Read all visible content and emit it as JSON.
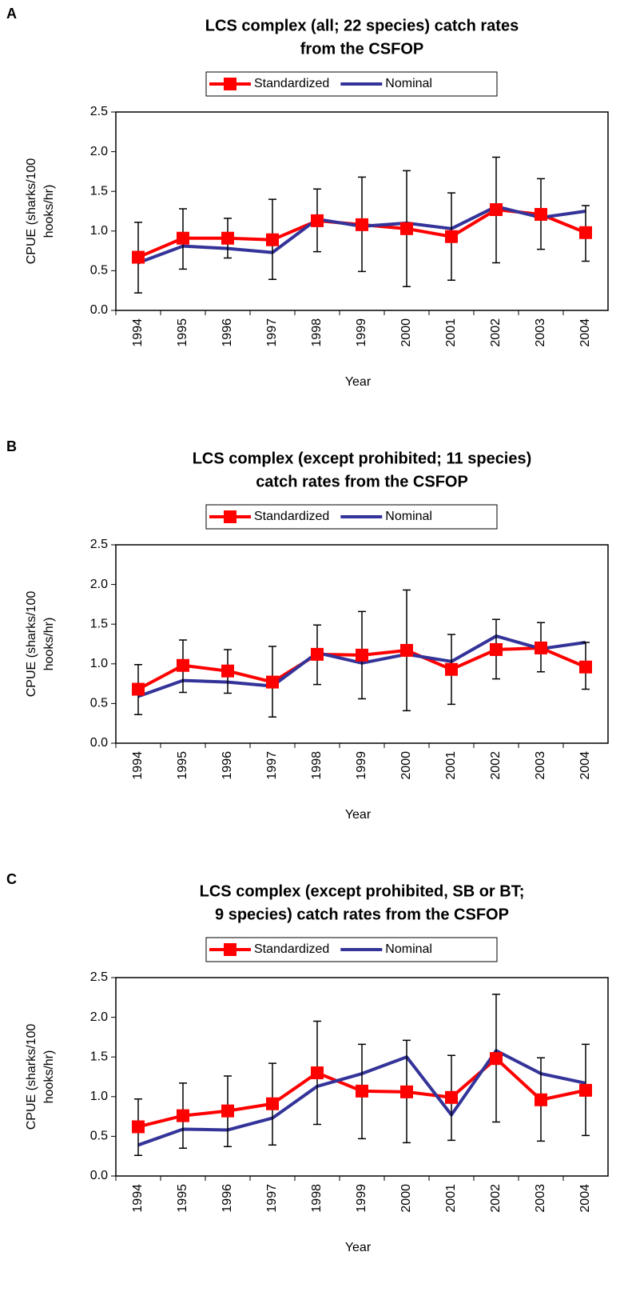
{
  "chart_data": [
    {
      "type": "line",
      "panel": "A",
      "title": [
        "LCS complex (all; 22 species) catch rates",
        "from the CSFOP"
      ],
      "categories": [
        "1994",
        "1995",
        "1996",
        "1997",
        "1998",
        "1999",
        "2000",
        "2001",
        "2002",
        "2003",
        "2004"
      ],
      "xlabel": "Year",
      "ylabel": [
        "CPUE (sharks/100",
        "hooks/hr)"
      ],
      "ylim": [
        0,
        2.5
      ],
      "yticks": [
        {
          "value": 0,
          "label": "0.0"
        },
        {
          "value": 0.5,
          "label": "0.5"
        },
        {
          "value": 1,
          "label": "1.0"
        },
        {
          "value": 1.5,
          "label": "1.5"
        },
        {
          "value": 2,
          "label": "2.0"
        },
        {
          "value": 2.5,
          "label": "2.5"
        }
      ],
      "series": [
        {
          "name": "Standardized",
          "color": "#ff0000",
          "values": [
            0.67,
            0.91,
            0.91,
            0.89,
            1.13,
            1.08,
            1.03,
            0.93,
            1.27,
            1.21,
            0.98
          ],
          "lower": [
            0.22,
            0.52,
            0.66,
            0.39,
            0.74,
            0.49,
            0.3,
            0.38,
            0.6,
            0.77,
            0.62
          ],
          "upper": [
            1.11,
            1.28,
            1.16,
            1.4,
            1.53,
            1.68,
            1.76,
            1.48,
            1.93,
            1.66,
            1.32
          ]
        },
        {
          "name": "Nominal",
          "color": "#333399",
          "values": [
            0.6,
            0.81,
            0.78,
            0.73,
            1.15,
            1.06,
            1.1,
            1.03,
            1.31,
            1.17,
            1.25
          ]
        }
      ]
    },
    {
      "type": "line",
      "panel": "B",
      "title": [
        "LCS complex (except prohibited; 11 species)",
        "catch rates from the CSFOP"
      ],
      "categories": [
        "1994",
        "1995",
        "1996",
        "1997",
        "1998",
        "1999",
        "2000",
        "2001",
        "2002",
        "2003",
        "2004"
      ],
      "xlabel": "Year",
      "ylabel": [
        "CPUE (sharks/100",
        "hooks/hr)"
      ],
      "ylim": [
        0,
        2.5
      ],
      "yticks": [
        {
          "value": 0,
          "label": "0.0"
        },
        {
          "value": 0.5,
          "label": "0.5"
        },
        {
          "value": 1,
          "label": "1.0"
        },
        {
          "value": 1.5,
          "label": "1.5"
        },
        {
          "value": 2,
          "label": "2.0"
        },
        {
          "value": 2.5,
          "label": "2.5"
        }
      ],
      "series": [
        {
          "name": "Standardized",
          "color": "#ff0000",
          "values": [
            0.68,
            0.98,
            0.91,
            0.77,
            1.12,
            1.11,
            1.17,
            0.93,
            1.18,
            1.2,
            0.96
          ],
          "lower": [
            0.36,
            0.64,
            0.63,
            0.33,
            0.74,
            0.56,
            0.41,
            0.49,
            0.81,
            0.9,
            0.68
          ],
          "upper": [
            0.99,
            1.3,
            1.18,
            1.22,
            1.49,
            1.66,
            1.93,
            1.37,
            1.56,
            1.52,
            1.27
          ]
        },
        {
          "name": "Nominal",
          "color": "#333399",
          "values": [
            0.59,
            0.79,
            0.77,
            0.72,
            1.14,
            1.01,
            1.12,
            1.03,
            1.35,
            1.19,
            1.27
          ]
        }
      ]
    },
    {
      "type": "line",
      "panel": "C",
      "title": [
        "LCS complex (except prohibited, SB or BT;",
        "9 species) catch rates from the CSFOP"
      ],
      "categories": [
        "1994",
        "1995",
        "1996",
        "1997",
        "1998",
        "1999",
        "2000",
        "2001",
        "2002",
        "2003",
        "2004"
      ],
      "xlabel": "Year",
      "ylabel": [
        "CPUE (sharks/100",
        "hooks/hr)"
      ],
      "ylim": [
        0,
        2.5
      ],
      "yticks": [
        {
          "value": 0,
          "label": "0.0"
        },
        {
          "value": 0.5,
          "label": "0.5"
        },
        {
          "value": 1,
          "label": "1.0"
        },
        {
          "value": 1.5,
          "label": "1.5"
        },
        {
          "value": 2,
          "label": "2.0"
        },
        {
          "value": 2.5,
          "label": "2.5"
        }
      ],
      "series": [
        {
          "name": "Standardized",
          "color": "#ff0000",
          "values": [
            0.62,
            0.76,
            0.82,
            0.91,
            1.3,
            1.07,
            1.06,
            0.99,
            1.48,
            0.96,
            1.08
          ],
          "lower": [
            0.26,
            0.35,
            0.37,
            0.39,
            0.65,
            0.47,
            0.42,
            0.45,
            0.68,
            0.44,
            0.51
          ],
          "upper": [
            0.97,
            1.17,
            1.26,
            1.42,
            1.95,
            1.66,
            1.71,
            1.52,
            2.29,
            1.49,
            1.66
          ]
        },
        {
          "name": "Nominal",
          "color": "#333399",
          "values": [
            0.39,
            0.59,
            0.58,
            0.73,
            1.13,
            1.29,
            1.5,
            0.77,
            1.58,
            1.29,
            1.17
          ]
        }
      ]
    }
  ]
}
